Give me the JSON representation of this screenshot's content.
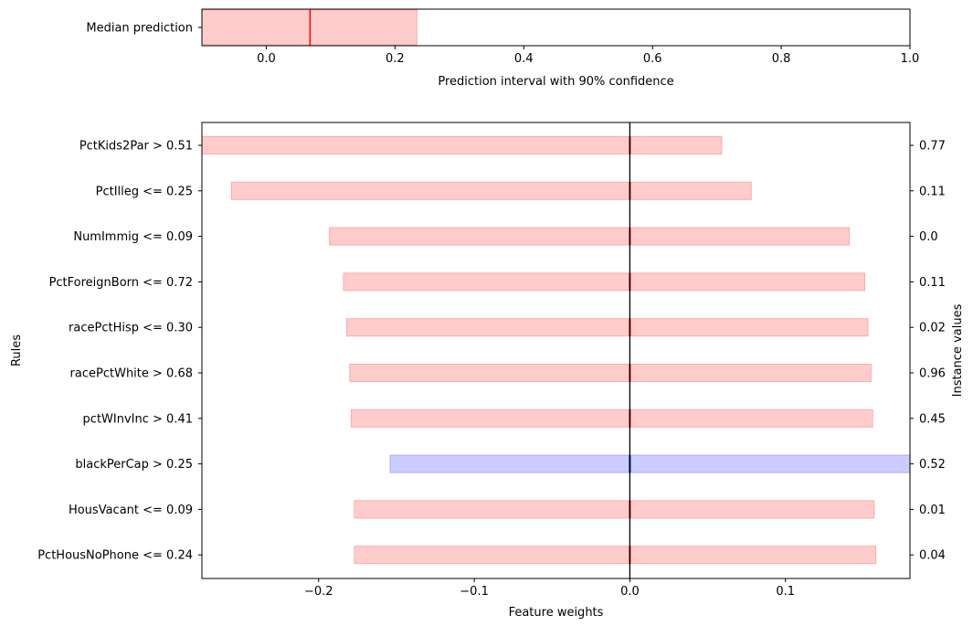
{
  "chart_data": [
    {
      "type": "bar",
      "orientation": "horizontal",
      "role": "prediction-interval",
      "xlabel": "Prediction interval with 90% confidence",
      "ylabel": "",
      "xlim": [
        -0.1,
        1.0
      ],
      "xticks": [
        0.0,
        0.2,
        0.4,
        0.6,
        0.8,
        1.0
      ],
      "xtick_labels": [
        "0.0",
        "0.2",
        "0.4",
        "0.6",
        "0.8",
        "1.0"
      ],
      "categories": [
        "Median prediction"
      ],
      "interval": {
        "low": -0.1,
        "high": 0.234
      },
      "median": 0.068,
      "grid": false,
      "colors": {
        "interval": "#ffcccc",
        "interval_edge": "#ffaaaa",
        "median": "#ff0000"
      }
    },
    {
      "type": "bar",
      "orientation": "horizontal",
      "role": "feature-weights",
      "xlabel": "Feature weights",
      "ylabel": "Rules",
      "y2label": "Instance values",
      "xlim": [
        -0.275,
        0.18
      ],
      "xticks": [
        -0.2,
        -0.1,
        0.0,
        0.1
      ],
      "xtick_labels": [
        "−0.2",
        "−0.1",
        "0.0",
        "0.1"
      ],
      "grid": false,
      "rows": [
        {
          "rule": "PctKids2Par > 0.51",
          "instance_value": "0.77",
          "low": -0.275,
          "high": 0.059,
          "color": "red"
        },
        {
          "rule": "PctIlleg <= 0.25",
          "instance_value": "0.11",
          "low": -0.256,
          "high": 0.078,
          "color": "red"
        },
        {
          "rule": "NumImmig <= 0.09",
          "instance_value": "0.0",
          "low": -0.193,
          "high": 0.141,
          "color": "red"
        },
        {
          "rule": "PctForeignBorn <= 0.72",
          "instance_value": "0.11",
          "low": -0.184,
          "high": 0.151,
          "color": "red"
        },
        {
          "rule": "racePctHisp <= 0.30",
          "instance_value": "0.02",
          "low": -0.182,
          "high": 0.153,
          "color": "red"
        },
        {
          "rule": "racePctWhite > 0.68",
          "instance_value": "0.96",
          "low": -0.18,
          "high": 0.155,
          "color": "red"
        },
        {
          "rule": "pctWInvInc > 0.41",
          "instance_value": "0.45",
          "low": -0.179,
          "high": 0.156,
          "color": "red"
        },
        {
          "rule": "blackPerCap > 0.25",
          "instance_value": "0.52",
          "low": -0.154,
          "high": 0.18,
          "color": "blue"
        },
        {
          "rule": "HousVacant <= 0.09",
          "instance_value": "0.01",
          "low": -0.177,
          "high": 0.157,
          "color": "red"
        },
        {
          "rule": "PctHousNoPhone <= 0.24",
          "instance_value": "0.04",
          "low": -0.177,
          "high": 0.158,
          "color": "red"
        }
      ],
      "colors": {
        "red_fill": "#ffcccc",
        "red_edge": "#ffaaaa",
        "red_line": "#ff0000",
        "blue_fill": "#ccccff",
        "blue_edge": "#aaaaff",
        "blue_line": "#0000ff",
        "zero_line": "#000000"
      }
    }
  ]
}
